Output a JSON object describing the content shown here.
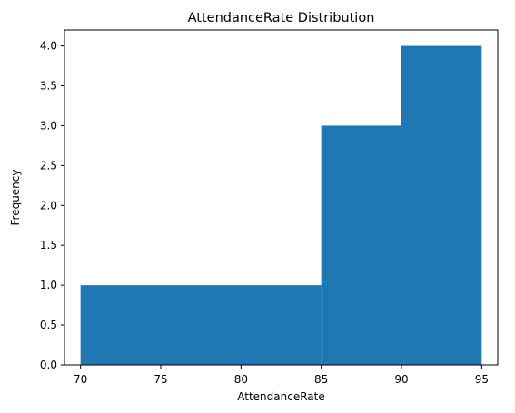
{
  "chart_data": {
    "type": "bar",
    "title": "AttendanceRate Distribution",
    "xlabel": "AttendanceRate",
    "ylabel": "Frequency",
    "bins": [
      {
        "x0": 70,
        "x1": 85,
        "count": 1
      },
      {
        "x0": 85,
        "x1": 90,
        "count": 3
      },
      {
        "x0": 90,
        "x1": 95,
        "count": 4
      }
    ],
    "xlim": [
      69,
      96
    ],
    "ylim": [
      0,
      4.2
    ],
    "x_ticks": [
      70,
      75,
      80,
      85,
      90,
      95
    ],
    "y_ticks": [
      0.0,
      0.5,
      1.0,
      1.5,
      2.0,
      2.5,
      3.0,
      3.5,
      4.0
    ],
    "x_tick_labels": [
      "70",
      "75",
      "80",
      "85",
      "90",
      "95"
    ],
    "y_tick_labels": [
      "0.0",
      "0.5",
      "1.0",
      "1.5",
      "2.0",
      "2.5",
      "3.0",
      "3.5",
      "4.0"
    ],
    "bar_color": "#1f77b4",
    "grid": false,
    "legend": "none"
  }
}
